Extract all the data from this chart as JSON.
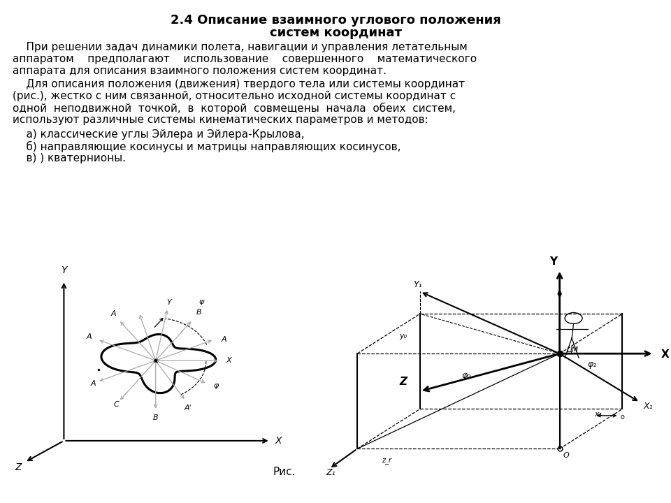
{
  "title_line1": "2.4 Описание взаимного углового положения",
  "title_line2": "систем координат",
  "bg_color": "#ffffff",
  "text_color": "#000000",
  "ris_label": "Рис."
}
